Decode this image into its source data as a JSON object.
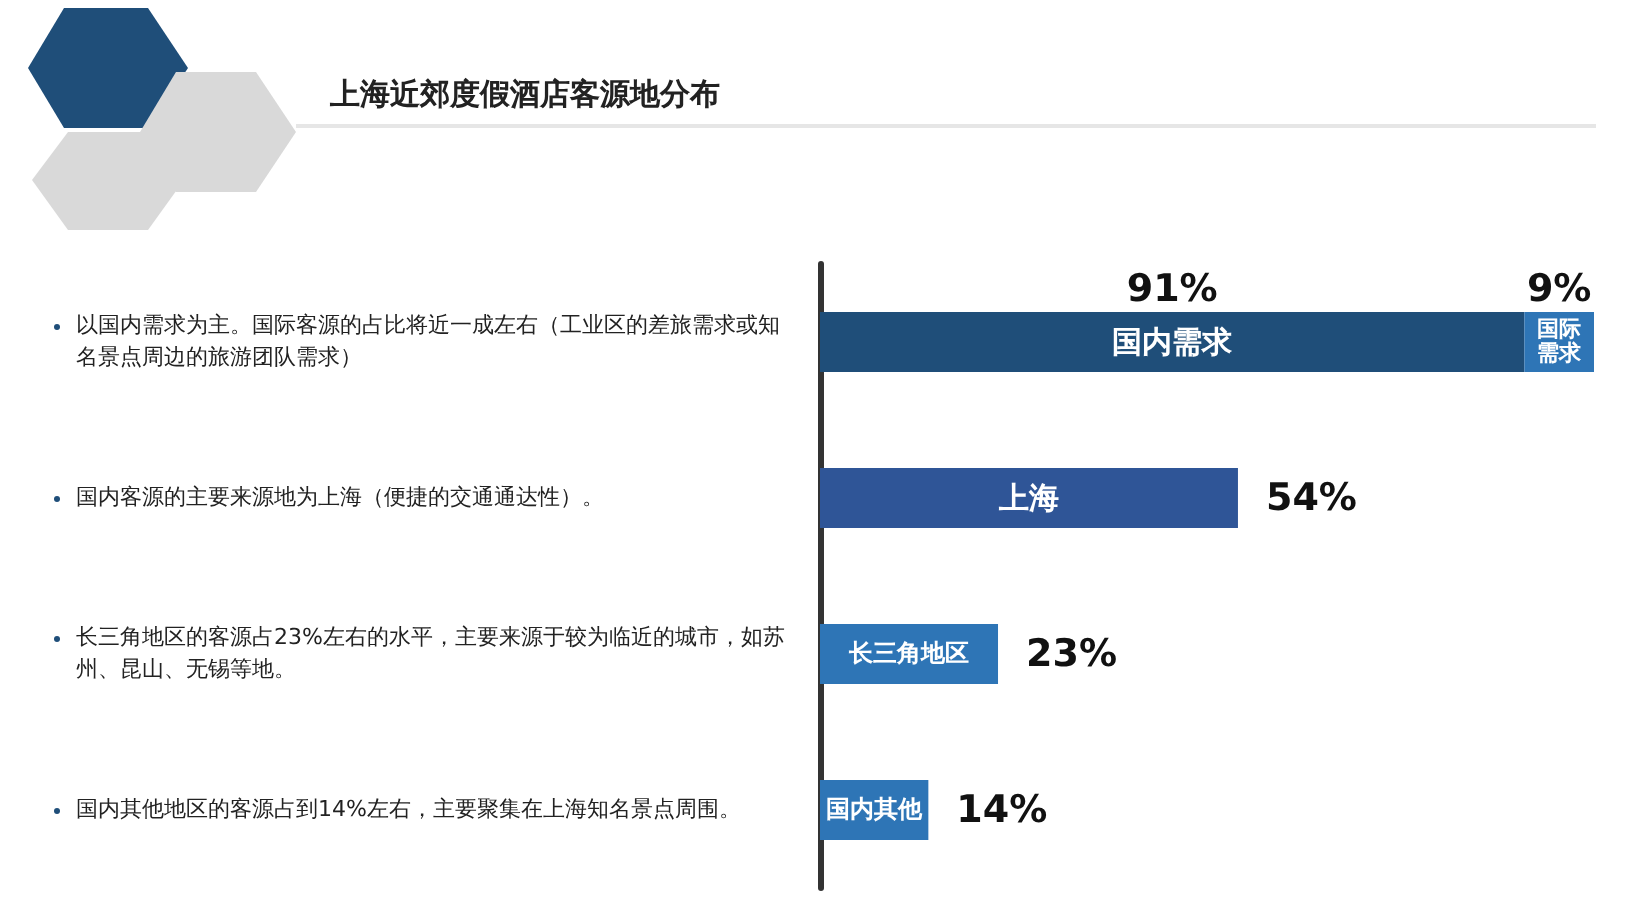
{
  "chart_data": {
    "type": "bar",
    "orientation": "horizontal",
    "stacked": true,
    "title": "上海近郊度假酒店客源地分布",
    "categories": [
      "国内需求",
      "上海",
      "长三角地区",
      "国内其他"
    ],
    "series": [
      {
        "colors": [
          "#1f4e79",
          "#2f5597",
          "#2e75b6",
          "#2e75b6"
        ],
        "values": [
          91,
          54,
          23,
          14
        ],
        "value_labels": [
          "91%",
          "54%",
          "23%",
          "14%"
        ]
      },
      {
        "name": "国际需求",
        "color": "#2e75b6",
        "values": [
          9,
          null,
          null,
          null
        ],
        "value_labels": [
          "9%",
          null,
          null,
          null
        ]
      }
    ],
    "annotations": [
      "以国内需求为主。国际客源的占比将近一成左右（工业区的差旅需求或知名景点周边的旅游团队需求）",
      "国内客源的主要来源地为上海（便捷的交通通达性）。",
      "长三角地区的客源占23%左右的水平，主要来源于较为临近的城市，如苏州、昆山、无锡等地。",
      "国内其他地区的客源占到14%左右，主要聚集在上海知名景点周围。"
    ],
    "legend": false
  }
}
